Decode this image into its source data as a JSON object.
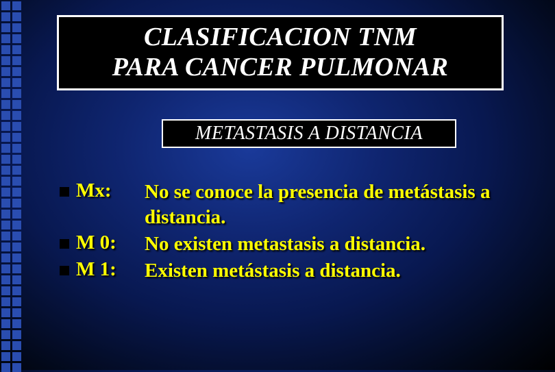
{
  "title": {
    "line1": "CLASIFICACION TNM",
    "line2": "PARA CANCER PULMONAR"
  },
  "subtitle": "METASTASIS A DISTANCIA",
  "items": [
    {
      "label": "Mx:",
      "desc": "No se conoce la presencia de metástasis a distancia."
    },
    {
      "label": "M 0:",
      "desc": "No existen metastasis a distancia."
    },
    {
      "label": "M 1:",
      "desc": "Existen metástasis a distancia."
    }
  ],
  "colors": {
    "text_highlight": "#ffff00",
    "box_bg": "#000000",
    "box_border": "#ffffff",
    "dot_color": "#2a4db0"
  }
}
